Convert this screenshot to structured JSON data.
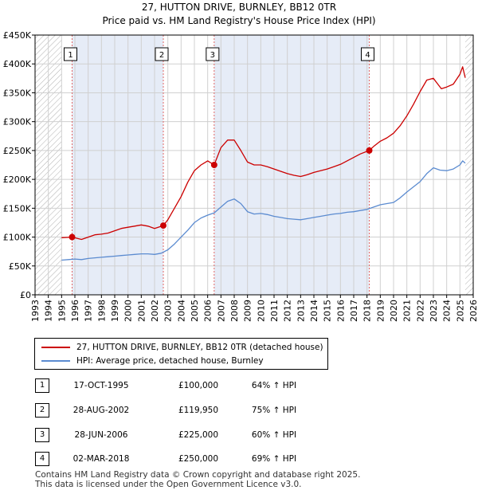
{
  "title": "27, HUTTON DRIVE, BURNLEY, BB12 0TR",
  "subtitle": "Price paid vs. HM Land Registry's House Price Index (HPI)",
  "colors": {
    "property": "#cc0000",
    "hpi": "#5b8bd0",
    "shade": "#e6ecf7",
    "hatch": "#b0b0b0",
    "grid": "#d0d0d0"
  },
  "chart_data": {
    "type": "line",
    "xlabel": "",
    "ylabel": "",
    "xlim": [
      1993,
      2026
    ],
    "ylim": [
      0,
      450000
    ],
    "y_ticks": [
      0,
      50000,
      100000,
      150000,
      200000,
      250000,
      300000,
      350000,
      400000,
      450000
    ],
    "y_tick_labels": [
      "£0",
      "£50K",
      "£100K",
      "£150K",
      "£200K",
      "£250K",
      "£300K",
      "£350K",
      "£400K",
      "£450K"
    ],
    "x_ticks": [
      1993,
      1994,
      1995,
      1996,
      1997,
      1998,
      1999,
      2000,
      2001,
      2002,
      2003,
      2004,
      2005,
      2006,
      2007,
      2008,
      2009,
      2010,
      2011,
      2012,
      2013,
      2014,
      2015,
      2016,
      2017,
      2018,
      2019,
      2020,
      2021,
      2022,
      2023,
      2024,
      2025,
      2026
    ],
    "data_range": [
      1995,
      2025.4
    ],
    "series": [
      {
        "name": "27, HUTTON DRIVE, BURNLEY, BB12 0TR (detached house)",
        "color": "#cc0000",
        "points": [
          [
            1995.0,
            99000
          ],
          [
            1995.79,
            100000
          ],
          [
            1996.5,
            96000
          ],
          [
            1997.0,
            100000
          ],
          [
            1997.5,
            104000
          ],
          [
            1998.0,
            105000
          ],
          [
            1998.5,
            107000
          ],
          [
            1999.0,
            111000
          ],
          [
            1999.5,
            115000
          ],
          [
            2000.0,
            117000
          ],
          [
            2000.5,
            119000
          ],
          [
            2001.0,
            121000
          ],
          [
            2001.5,
            119000
          ],
          [
            2002.0,
            115000
          ],
          [
            2002.66,
            119950
          ],
          [
            2003.0,
            130000
          ],
          [
            2003.5,
            150000
          ],
          [
            2004.0,
            170000
          ],
          [
            2004.5,
            195000
          ],
          [
            2005.0,
            215000
          ],
          [
            2005.5,
            225000
          ],
          [
            2006.0,
            232000
          ],
          [
            2006.49,
            225000
          ],
          [
            2007.0,
            255000
          ],
          [
            2007.5,
            268000
          ],
          [
            2008.0,
            268000
          ],
          [
            2008.5,
            250000
          ],
          [
            2009.0,
            230000
          ],
          [
            2009.5,
            225000
          ],
          [
            2010.0,
            225000
          ],
          [
            2010.5,
            222000
          ],
          [
            2011.0,
            218000
          ],
          [
            2011.5,
            214000
          ],
          [
            2012.0,
            210000
          ],
          [
            2012.5,
            207000
          ],
          [
            2013.0,
            205000
          ],
          [
            2013.5,
            208000
          ],
          [
            2014.0,
            212000
          ],
          [
            2014.5,
            215000
          ],
          [
            2015.0,
            218000
          ],
          [
            2015.5,
            222000
          ],
          [
            2016.0,
            226000
          ],
          [
            2016.5,
            232000
          ],
          [
            2017.0,
            238000
          ],
          [
            2017.5,
            244000
          ],
          [
            2018.17,
            250000
          ],
          [
            2018.5,
            257000
          ],
          [
            2019.0,
            266000
          ],
          [
            2019.5,
            272000
          ],
          [
            2020.0,
            280000
          ],
          [
            2020.5,
            293000
          ],
          [
            2021.0,
            310000
          ],
          [
            2021.5,
            330000
          ],
          [
            2022.0,
            352000
          ],
          [
            2022.5,
            372000
          ],
          [
            2023.0,
            375000
          ],
          [
            2023.3,
            366000
          ],
          [
            2023.6,
            357000
          ],
          [
            2024.0,
            360000
          ],
          [
            2024.5,
            365000
          ],
          [
            2025.0,
            382000
          ],
          [
            2025.2,
            395000
          ],
          [
            2025.4,
            376000
          ]
        ]
      },
      {
        "name": "HPI: Average price, detached house, Burnley",
        "color": "#5b8bd0",
        "points": [
          [
            1995.0,
            60000
          ],
          [
            1995.5,
            61000
          ],
          [
            1996.0,
            62000
          ],
          [
            1996.5,
            61000
          ],
          [
            1997.0,
            63000
          ],
          [
            1997.5,
            64000
          ],
          [
            1998.0,
            65000
          ],
          [
            1998.5,
            66000
          ],
          [
            1999.0,
            67000
          ],
          [
            1999.5,
            68000
          ],
          [
            2000.0,
            69000
          ],
          [
            2000.5,
            70000
          ],
          [
            2001.0,
            71000
          ],
          [
            2001.5,
            71000
          ],
          [
            2002.0,
            70000
          ],
          [
            2002.5,
            72000
          ],
          [
            2003.0,
            78000
          ],
          [
            2003.5,
            88000
          ],
          [
            2004.0,
            100000
          ],
          [
            2004.5,
            112000
          ],
          [
            2005.0,
            125000
          ],
          [
            2005.5,
            133000
          ],
          [
            2006.0,
            138000
          ],
          [
            2006.5,
            142000
          ],
          [
            2007.0,
            152000
          ],
          [
            2007.5,
            162000
          ],
          [
            2008.0,
            166000
          ],
          [
            2008.5,
            158000
          ],
          [
            2009.0,
            144000
          ],
          [
            2009.5,
            140000
          ],
          [
            2010.0,
            141000
          ],
          [
            2010.5,
            139000
          ],
          [
            2011.0,
            136000
          ],
          [
            2011.5,
            134000
          ],
          [
            2012.0,
            132000
          ],
          [
            2012.5,
            131000
          ],
          [
            2013.0,
            130000
          ],
          [
            2013.5,
            132000
          ],
          [
            2014.0,
            134000
          ],
          [
            2014.5,
            136000
          ],
          [
            2015.0,
            138000
          ],
          [
            2015.5,
            140000
          ],
          [
            2016.0,
            141000
          ],
          [
            2016.5,
            143000
          ],
          [
            2017.0,
            144000
          ],
          [
            2017.5,
            146000
          ],
          [
            2018.0,
            148000
          ],
          [
            2018.5,
            152000
          ],
          [
            2019.0,
            156000
          ],
          [
            2019.5,
            158000
          ],
          [
            2020.0,
            160000
          ],
          [
            2020.5,
            168000
          ],
          [
            2021.0,
            178000
          ],
          [
            2021.5,
            187000
          ],
          [
            2022.0,
            196000
          ],
          [
            2022.5,
            210000
          ],
          [
            2023.0,
            220000
          ],
          [
            2023.5,
            216000
          ],
          [
            2024.0,
            215000
          ],
          [
            2024.5,
            218000
          ],
          [
            2025.0,
            225000
          ],
          [
            2025.2,
            232000
          ],
          [
            2025.4,
            228000
          ]
        ]
      }
    ],
    "sales": [
      {
        "label": "1",
        "x": 1995.79,
        "y": 100000
      },
      {
        "label": "2",
        "x": 2002.66,
        "y": 119950
      },
      {
        "label": "3",
        "x": 2006.49,
        "y": 225000
      },
      {
        "label": "4",
        "x": 2018.17,
        "y": 250000
      }
    ],
    "shaded_intervals": [
      [
        1995.79,
        2002.66
      ],
      [
        2006.49,
        2018.17
      ]
    ],
    "hatched_intervals": [
      [
        1993,
        1995.0
      ],
      [
        2025.4,
        2026
      ]
    ]
  },
  "legend": {
    "property_label": "27, HUTTON DRIVE, BURNLEY, BB12 0TR (detached house)",
    "hpi_label": "HPI: Average price, detached house, Burnley"
  },
  "sales_table": [
    {
      "num": "1",
      "date": "17-OCT-1995",
      "price": "£100,000",
      "hpi": "64% ↑ HPI"
    },
    {
      "num": "2",
      "date": "28-AUG-2002",
      "price": "£119,950",
      "hpi": "75% ↑ HPI"
    },
    {
      "num": "3",
      "date": "28-JUN-2006",
      "price": "£225,000",
      "hpi": "60% ↑ HPI"
    },
    {
      "num": "4",
      "date": "02-MAR-2018",
      "price": "£250,000",
      "hpi": "69% ↑ HPI"
    }
  ],
  "footer": {
    "line1": "Contains HM Land Registry data © Crown copyright and database right 2025.",
    "line2": "This data is licensed under the Open Government Licence v3.0."
  }
}
